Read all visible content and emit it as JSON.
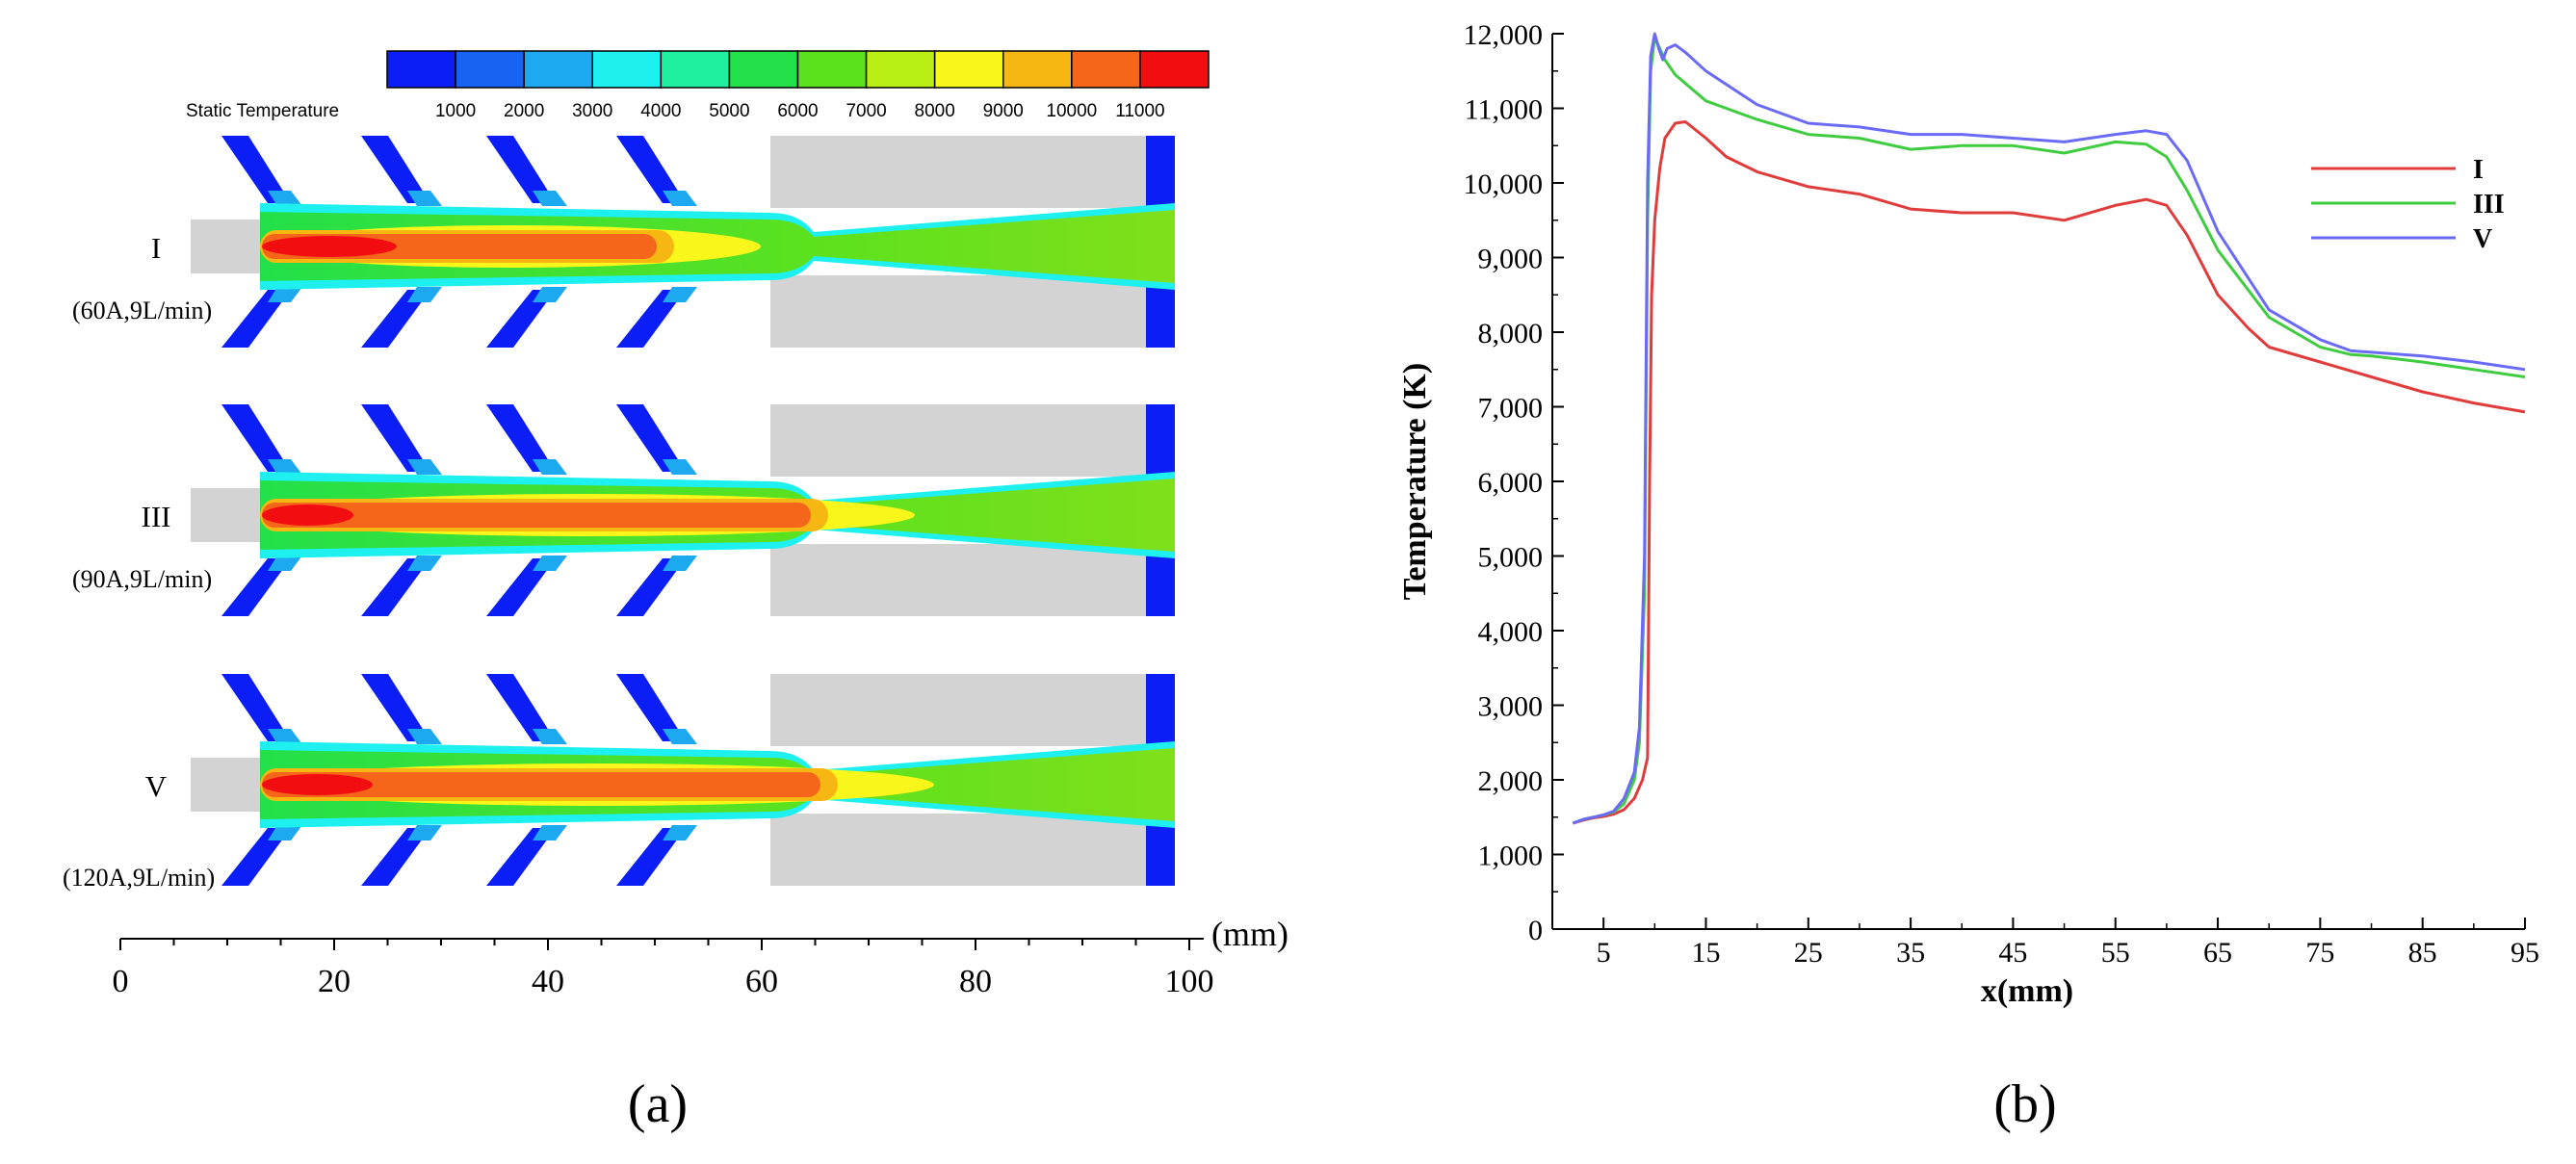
{
  "panel_labels": {
    "a": "(a)",
    "b": "(b)"
  },
  "contour": {
    "colorbar_title": "Static Temperature",
    "colorbar_ticks": [
      "1000",
      "2000",
      "3000",
      "4000",
      "5000",
      "6000",
      "7000",
      "8000",
      "9000",
      "10000",
      "11000"
    ],
    "colorbar_colors": [
      "#0a1ef5",
      "#1763f2",
      "#1da9f0",
      "#1ef0f0",
      "#1ef0a0",
      "#22e04a",
      "#5ce11e",
      "#b9ef14",
      "#f8f61a",
      "#f7b712",
      "#f5651a",
      "#f20d10"
    ],
    "cases": [
      {
        "roman": "I",
        "condition": "(60A,9L/min)"
      },
      {
        "roman": "III",
        "condition": "(90A,9L/min)"
      },
      {
        "roman": "V",
        "condition": "(120A,9L/min)"
      }
    ],
    "axis": {
      "unit": "(mm)",
      "ticks": [
        "0",
        "20",
        "40",
        "60",
        "80",
        "100"
      ]
    }
  },
  "chart_data": {
    "type": "line",
    "title": "",
    "xlabel": "x(mm)",
    "ylabel": "Temperature (K)",
    "xlim": [
      0,
      95
    ],
    "ylim": [
      0,
      12000
    ],
    "xticks": [
      5,
      15,
      25,
      35,
      45,
      55,
      65,
      75,
      85,
      95
    ],
    "yticks": [
      0,
      1000,
      2000,
      3000,
      4000,
      5000,
      6000,
      7000,
      8000,
      9000,
      10000,
      11000,
      12000
    ],
    "ytick_labels": [
      "0",
      "1,000",
      "2,000",
      "3,000",
      "4,000",
      "5,000",
      "6,000",
      "7,000",
      "8,000",
      "9,000",
      "10,000",
      "11,000",
      "12,000"
    ],
    "xtick_labels": [
      "5",
      "15",
      "25",
      "35",
      "45",
      "55",
      "65",
      "75",
      "85",
      "95"
    ],
    "legend_position": "top-right",
    "series": [
      {
        "name": "I",
        "color": "#e03c3c",
        "x": [
          2,
          3,
          4,
          5,
          6,
          7,
          8,
          8.8,
          9.3,
          9.5,
          9.7,
          10,
          10.5,
          11,
          12,
          13,
          15,
          17,
          20,
          25,
          30,
          35,
          40,
          45,
          50,
          55,
          58,
          60,
          62,
          65,
          68,
          70,
          75,
          80,
          85,
          90,
          95
        ],
        "y": [
          1420,
          1460,
          1490,
          1510,
          1540,
          1600,
          1750,
          2000,
          2300,
          6000,
          8500,
          9500,
          10200,
          10600,
          10800,
          10820,
          10600,
          10350,
          10150,
          9950,
          9850,
          9650,
          9600,
          9600,
          9500,
          9700,
          9780,
          9700,
          9300,
          8500,
          8050,
          7800,
          7600,
          7400,
          7200,
          7050,
          6930
        ]
      },
      {
        "name": "III",
        "color": "#3fcc3f",
        "x": [
          2,
          3,
          4,
          5,
          6,
          7,
          8,
          8.5,
          9,
          9.3,
          9.6,
          10,
          10.5,
          11,
          12,
          15,
          20,
          25,
          30,
          35,
          40,
          45,
          50,
          55,
          58,
          60,
          62,
          65,
          70,
          75,
          78,
          80,
          85,
          90,
          95
        ],
        "y": [
          1420,
          1470,
          1500,
          1530,
          1570,
          1680,
          2000,
          2500,
          4500,
          9500,
          11500,
          11950,
          11800,
          11650,
          11450,
          11100,
          10850,
          10650,
          10600,
          10450,
          10500,
          10500,
          10400,
          10550,
          10520,
          10350,
          9900,
          9100,
          8200,
          7800,
          7700,
          7680,
          7600,
          7500,
          7400
        ]
      },
      {
        "name": "V",
        "color": "#6a6af5",
        "x": [
          2,
          3,
          4,
          5,
          6,
          7,
          8,
          8.5,
          9,
          9.3,
          9.6,
          10,
          10.4,
          10.8,
          11.2,
          12,
          13,
          15,
          20,
          25,
          30,
          35,
          40,
          45,
          50,
          55,
          58,
          60,
          62,
          65,
          70,
          75,
          78,
          80,
          85,
          90,
          95
        ],
        "y": [
          1420,
          1470,
          1500,
          1530,
          1580,
          1750,
          2100,
          2700,
          5000,
          10000,
          11700,
          12000,
          11800,
          11650,
          11800,
          11850,
          11750,
          11500,
          11050,
          10800,
          10750,
          10650,
          10650,
          10600,
          10550,
          10650,
          10700,
          10650,
          10300,
          9350,
          8300,
          7900,
          7750,
          7730,
          7680,
          7600,
          7500
        ]
      }
    ]
  }
}
